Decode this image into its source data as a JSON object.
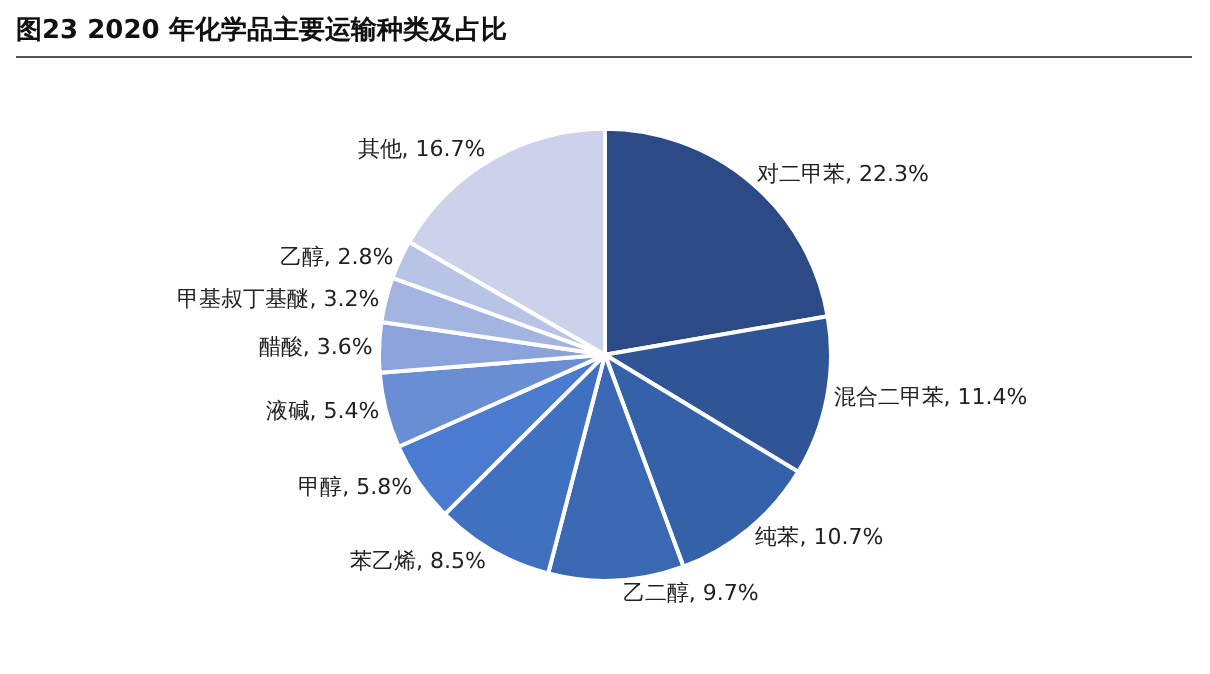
{
  "chart_data": {
    "type": "pie",
    "title": "图23  2020 年化学品主要运输种类及占比",
    "categories": [
      "对二甲苯",
      "混合二甲苯",
      "纯苯",
      "乙二醇",
      "苯乙烯",
      "甲醇",
      "液碱",
      "醋酸",
      "甲基叔丁基醚",
      "乙醇",
      "其他"
    ],
    "values": [
      22.3,
      11.4,
      10.7,
      9.7,
      8.5,
      5.8,
      5.4,
      3.6,
      3.2,
      2.8,
      16.7
    ],
    "value_labels": [
      "22.3%",
      "11.4%",
      "10.7%",
      "9.7%",
      "8.5%",
      "5.8%",
      "5.4%",
      "3.6%",
      "3.2%",
      "2.8%",
      "16.7%"
    ],
    "colors": [
      "#2c4a86",
      "#2f5597",
      "#3461a8",
      "#3a68b3",
      "#4070c0",
      "#4a7bd0",
      "#6a8ed4",
      "#8aa3da",
      "#a2b4df",
      "#b8c4e5",
      "#cbd2ea"
    ],
    "legend": false
  }
}
